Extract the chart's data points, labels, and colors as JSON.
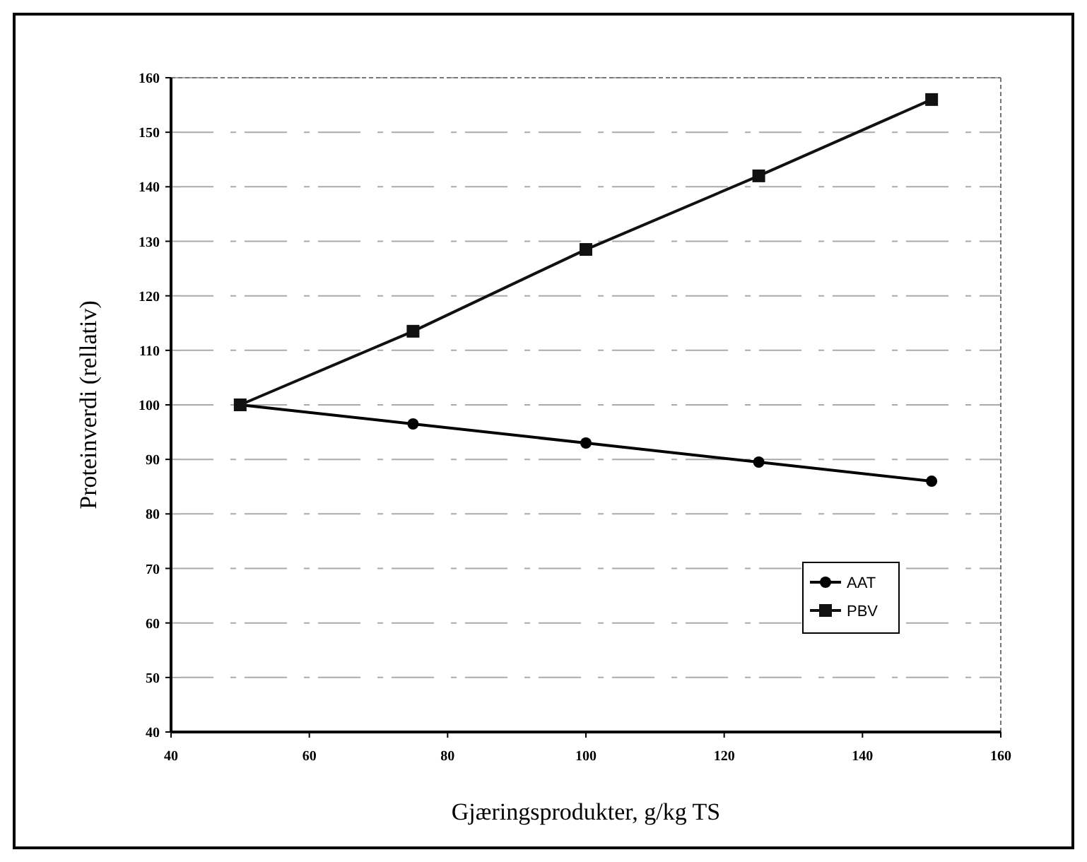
{
  "chart_data": {
    "type": "line",
    "xlabel": "Gjæringsprodukter, g/kg TS",
    "ylabel": "Proteinverdi (rellativ)",
    "x": [
      50,
      75,
      100,
      125,
      150
    ],
    "series": [
      {
        "name": "AAT",
        "color": "#000000",
        "values": [
          100,
          96.5,
          93,
          89.5,
          86
        ],
        "marker": "circle"
      },
      {
        "name": "PBV",
        "color": "#111111",
        "values": [
          100,
          113.5,
          128.5,
          142,
          156
        ],
        "marker": "square"
      }
    ],
    "xlim": [
      40,
      160
    ],
    "xticks": [
      40,
      60,
      80,
      100,
      120,
      140,
      160
    ],
    "ylim": [
      40,
      160
    ],
    "yticks": [
      40,
      50,
      60,
      70,
      80,
      90,
      100,
      110,
      120,
      130,
      140,
      150,
      160
    ],
    "grid": "y",
    "legend": "bottom right"
  }
}
